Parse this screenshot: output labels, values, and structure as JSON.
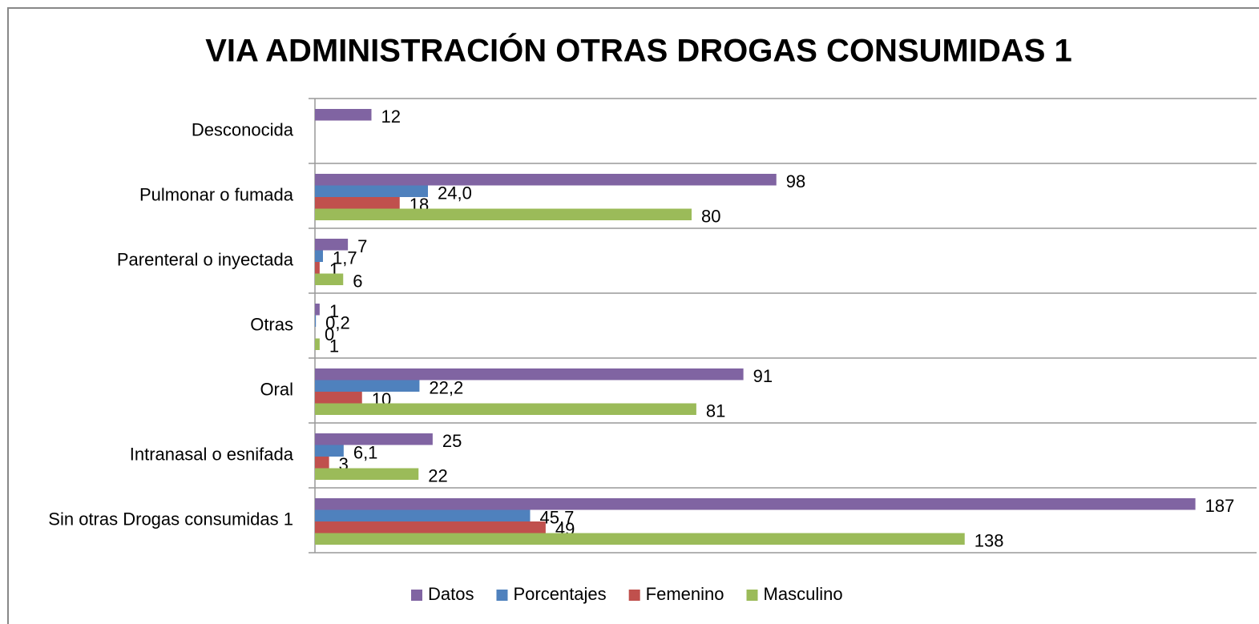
{
  "chart_data": {
    "type": "barh",
    "title": "VIA ADMINISTRACIÓN OTRAS DROGAS CONSUMIDAS 1",
    "categories": [
      "Desconocida",
      "Pulmonar o fumada",
      "Parenteral o inyectada",
      "Otras",
      "Oral",
      "Intranasal o esnifada",
      "Sin otras Drogas consumidas 1"
    ],
    "series": [
      {
        "name": "Datos",
        "color": "#8064a2",
        "values": [
          12,
          98,
          7,
          1,
          91,
          25,
          187
        ]
      },
      {
        "name": "Porcentajes",
        "color": "#4f81bd",
        "values": [
          null,
          24.0,
          1.7,
          0.2,
          22.2,
          6.1,
          45.7
        ],
        "value_labels": [
          null,
          "24,0",
          "1,7",
          "0,2",
          "22,2",
          "6,1",
          "45,7"
        ]
      },
      {
        "name": "Femenino",
        "color": "#c0504d",
        "values": [
          null,
          18,
          1,
          0,
          10,
          3,
          49
        ]
      },
      {
        "name": "Masculino",
        "color": "#9bbb59",
        "values": [
          null,
          80,
          6,
          1,
          81,
          22,
          138
        ]
      }
    ],
    "xlim": [
      0,
      200
    ],
    "legend": "bottom"
  }
}
